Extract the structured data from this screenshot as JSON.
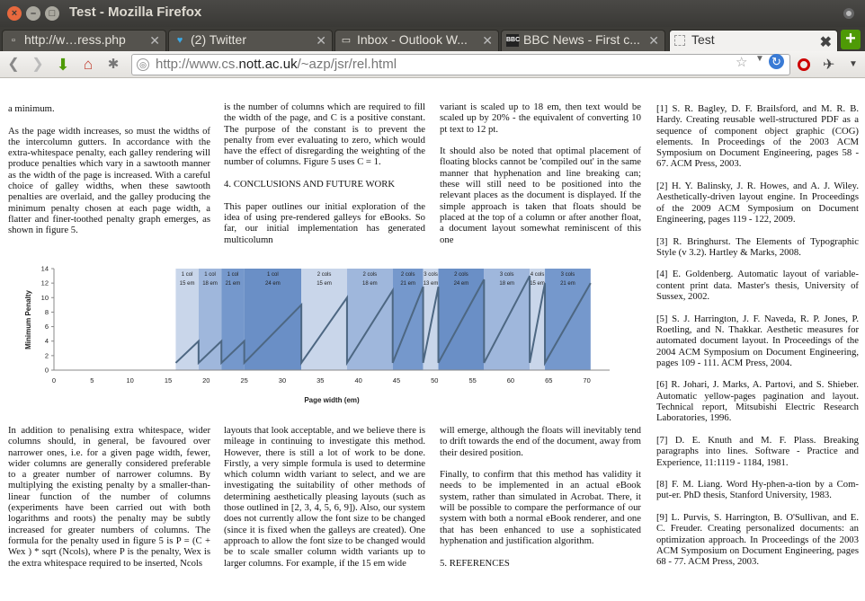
{
  "window": {
    "title": "Test - Mozilla Firefox"
  },
  "tabs": [
    {
      "label": "http://w…ress.php",
      "icon": "page-icon"
    },
    {
      "label": "(2) Twitter",
      "icon": "twitter-icon"
    },
    {
      "label": "Inbox - Outlook W...",
      "icon": "outlook-icon"
    },
    {
      "label": "BBC News - First c...",
      "icon": "bbc-icon",
      "icon_text": "BBC"
    },
    {
      "label": "Test",
      "icon": "page-icon",
      "active": true
    }
  ],
  "navbar": {
    "url_prefix": "http://www.cs.",
    "url_host": "nott.ac.uk",
    "url_path": "/~azp/jsr/rel.html"
  },
  "colors": {
    "chart_light": "#c9d6ea",
    "chart_mid": "#9fb7dc",
    "chart_dark": "#7598cc",
    "line": "#4d6782",
    "firefox_accent": "#e8693e",
    "new_tab": "#4e9a06"
  },
  "doc": {
    "col1": [
      "a minimum.",
      "As the page width increases, so must the widths of the intercolumn gutters. In accordance with the extra-whitespace penalty, each galley rendering will produce penalties which vary in a sawtooth manner as the width of the page is increased. With a careful choice of galley widths, when these sawtooth penalties are overlaid, and the galley producing the minimum penalty chosen at each page width, a flatter and finer-toothed penalty graph emerges, as shown in figure 5."
    ],
    "col2": [
      "is the number of columns which are required to fill the width of the page, and C is a positive constant. The purpose of the constant is to prevent the penalty from ever evaluating to zero, which would have the effect of disregarding the weighting of the number of columns. Figure 5 uses C = 1.",
      "4. CONCLUSIONS AND FUTURE WORK",
      "This paper outlines our initial exploration of the idea of using pre-rendered galleys for eBooks. So far, our initial implementation has generated multicolumn"
    ],
    "col3": [
      "variant is scaled up to 18 em, then text would be scaled up by 20% - the equivalent of converting 10 pt text to 12 pt.",
      "It should also be noted that optimal placement of floating blocks cannot be 'compiled out' in the same manner that hyphenation and line breaking can; these will still need to be positioned into the relevant places as the document is displayed. If the simple approach is taken that floats should be placed at the top of a column or after another float, a document layout somewhat reminiscent of this one"
    ],
    "references": [
      "[1] S. R. Bagley, D. F. Brailsford, and M. R. B. Hardy. Creating reusable well-structured PDF as a sequence of component object graphic (COG) elements. In Proceedings of the 2003 ACM Symposium on Document Engineering, pages 58 - 67. ACM Press, 2003.",
      "[2] H. Y. Balinsky, J. R. Howes, and A. J. Wiley. Aesthetically-driven layout engine. In Proceedings of the 2009 ACM Symposium on Document Engineering, pages 119 - 122, 2009.",
      "[3] R. Bringhurst. The Elements of Typographic Style (v 3.2). Hartley & Marks, 2008.",
      "[4] E. Goldenberg. Automatic layout of variable-content print data. Master's thesis, University of Sussex, 2002.",
      "[5] S. J. Harrington, J. F. Naveda, R. P. Jones, P. Roetling, and N. Thakkar. Aesthetic measures for automated document layout. In Proceedings of the 2004 ACM Symposium on Document Engineering, pages 109 - 111. ACM Press, 2004.",
      "[6] R. Johari, J. Marks, A. Partovi, and S. Shieber. Automatic yellow-pages pagination and layout. Technical report, Mitsubishi Electric Research Laboratories, 1996.",
      "[7] D. E. Knuth and M. F. Plass. Breaking paragraphs into lines. Software - Practice and Experience, 11:1119 - 1184, 1981.",
      "[8] F. M. Liang. Word Hy-phen-a-tion by a Com-put-er. PhD thesis, Stanford University, 1983.",
      "[9] L. Purvis, S. Harrington, B. O'Sullivan, and E. C. Freuder. Creating personalized documents: an optimization approach. In Proceedings of the 2003 ACM Symposium on Document Engineering, pages 68 - 77. ACM Press, 2003."
    ],
    "col5": [
      "In addition to penalising extra whitespace, wider columns should, in general, be favoured over narrower ones, i.e. for a given page width, fewer, wider columns are generally considered preferable to a greater number of narrower columns. By multiplying the existing penalty by a smaller-than-linear function of the number of columns (experiments have been carried out with both logarithms and roots) the penalty may be subtly increased for greater numbers of columns. The formula for the penalty used in figure 5 is P = (C + Wex ) * sqrt (Ncols), where P is the penalty, Wex is the extra whitespace required to be inserted, Ncols"
    ],
    "col6": [
      "layouts that look acceptable, and we believe there is mileage in continuing to investigate this method. However, there is still a lot of work to be done. Firstly, a very simple formula is used to determine which column width variant to select, and we are investigating the suitability of other methods of determining aesthetically pleasing layouts (such as those outlined in [2, 3, 4, 5, 6, 9]). Also, our system does not currently allow the font size to be changed (since it is fixed when the galleys are created). One approach to allow the font size to be changed would be to scale smaller column width variants up to larger columns. For example, if the 15 em wide"
    ],
    "col7": [
      "will emerge, although the floats will inevitably tend to drift towards the end of the document, away from their desired position.",
      "Finally, to confirm that this method has validity it needs to be implemented in an actual eBook system, rather than simulated in Acrobat. There, it will be possible to compare the performance of our system with both a normal eBook renderer, and one that has been enhanced to use a sophisticated hyphenation and justification algorithm.",
      "5. REFERENCES"
    ]
  },
  "chart_data": {
    "type": "line",
    "title": "",
    "xlabel": "Page width (em)",
    "ylabel": "Minimum Penalty",
    "xlim": [
      0,
      73
    ],
    "ylim": [
      0,
      14
    ],
    "xticks": [
      0,
      5,
      10,
      15,
      20,
      25,
      30,
      35,
      40,
      45,
      50,
      55,
      60,
      65,
      70
    ],
    "yticks": [
      0,
      2,
      4,
      6,
      8,
      10,
      12,
      14
    ],
    "bands": [
      {
        "x0": 16,
        "x1": 19,
        "top": "1 col",
        "bottom": "15 em",
        "shade": "light"
      },
      {
        "x0": 19,
        "x1": 22,
        "top": "1 col",
        "bottom": "18 em",
        "shade": "mid"
      },
      {
        "x0": 22,
        "x1": 25,
        "top": "1 col",
        "bottom": "21 em",
        "shade": "dark"
      },
      {
        "x0": 25,
        "x1": 32.5,
        "top": "1 col",
        "bottom": "24 em",
        "shade": "darker"
      },
      {
        "x0": 32.5,
        "x1": 38.5,
        "top": "2 cols",
        "bottom": "15 em",
        "shade": "light"
      },
      {
        "x0": 38.5,
        "x1": 44.5,
        "top": "2 cols",
        "bottom": "18 em",
        "shade": "mid"
      },
      {
        "x0": 44.5,
        "x1": 48.5,
        "top": "2 cols",
        "bottom": "21 em",
        "shade": "dark"
      },
      {
        "x0": 48.5,
        "x1": 50.5,
        "top": "3 cols",
        "bottom": "13 em",
        "shade": "light"
      },
      {
        "x0": 50.5,
        "x1": 56.5,
        "top": "2 cols",
        "bottom": "24 em",
        "shade": "darker"
      },
      {
        "x0": 56.5,
        "x1": 62.5,
        "top": "3 cols",
        "bottom": "18 em",
        "shade": "mid"
      },
      {
        "x0": 62.5,
        "x1": 64.5,
        "top": "4 cols",
        "bottom": "15 em",
        "shade": "light"
      },
      {
        "x0": 64.5,
        "x1": 70.5,
        "top": "3 cols",
        "bottom": "21 em",
        "shade": "dark"
      }
    ],
    "series": [
      {
        "x": [
          16,
          19,
          19,
          22,
          22,
          25,
          25,
          32.5,
          32.5,
          38.5,
          38.5,
          44.5,
          44.5,
          48.5,
          48.5,
          50.5,
          50.5,
          56.5,
          56.5,
          62.5,
          62.5,
          64.5,
          64.5,
          70.5
        ],
        "y": [
          1,
          4,
          1,
          4,
          1,
          4,
          1,
          9,
          1,
          10,
          1,
          11,
          1,
          11.5,
          1,
          11.5,
          1,
          12.5,
          1,
          13,
          1,
          12,
          1,
          12
        ]
      }
    ]
  }
}
